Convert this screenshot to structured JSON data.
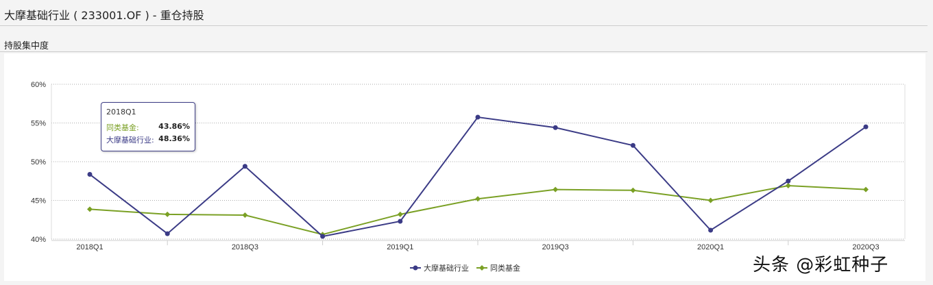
{
  "header": {
    "title": "大摩基础行业 ( 233001.OF ) - 重仓持股",
    "section": "持股集中度"
  },
  "tooltip": {
    "category": "2018Q1",
    "rows": [
      {
        "label": "同类基金:",
        "value": "43.86%"
      },
      {
        "label": "大摩基础行业:",
        "value": "48.36%"
      }
    ]
  },
  "watermark": "头条 @彩虹种子",
  "chart_data": {
    "type": "line",
    "categories": [
      "2018Q1",
      "2018Q2",
      "2018Q3",
      "2018Q4",
      "2019Q1",
      "2019Q2",
      "2019Q3",
      "2019Q4",
      "2020Q1",
      "2020Q2",
      "2020Q3"
    ],
    "x_tick_labels": [
      "2018Q1",
      "2018Q3",
      "2019Q1",
      "2019Q3",
      "2020Q1",
      "2020Q3"
    ],
    "y_tick_labels": [
      "40%",
      "45%",
      "50%",
      "55%",
      "60%"
    ],
    "ylim": [
      40,
      60
    ],
    "grid": true,
    "legend_placement": "bottom",
    "series": [
      {
        "name": "大摩基础行业",
        "color": "#3b3b86",
        "marker": "circle",
        "values": [
          48.36,
          40.7,
          49.4,
          40.35,
          42.3,
          55.75,
          54.4,
          52.1,
          41.15,
          47.5,
          54.5
        ]
      },
      {
        "name": "同类基金",
        "color": "#7aa024",
        "marker": "diamond",
        "values": [
          43.86,
          43.2,
          43.1,
          40.6,
          43.2,
          45.2,
          46.4,
          46.3,
          45.0,
          46.9,
          46.4
        ]
      }
    ]
  }
}
